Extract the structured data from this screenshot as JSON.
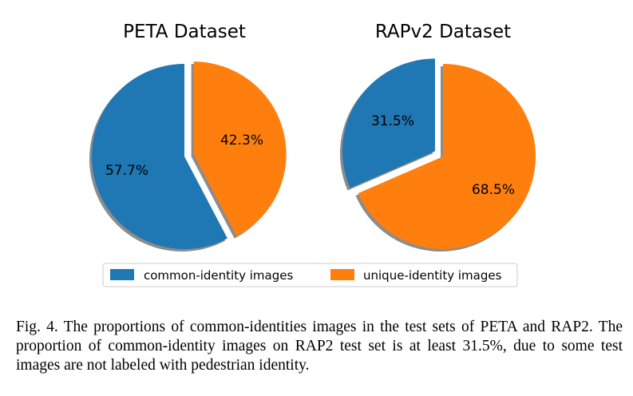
{
  "chart_data": [
    {
      "type": "pie",
      "title": "PETA Dataset",
      "slices": [
        {
          "label": "common-identity images",
          "value": 57.7,
          "display": "57.7%",
          "color": "#1f77b4"
        },
        {
          "label": "unique-identity images",
          "value": 42.3,
          "display": "42.3%",
          "color": "#ff7f0e"
        }
      ],
      "explode": "unique-identity images",
      "shadow": true
    },
    {
      "type": "pie",
      "title": "RAPv2 Dataset",
      "slices": [
        {
          "label": "common-identity images",
          "value": 31.5,
          "display": "31.5%",
          "color": "#1f77b4"
        },
        {
          "label": "unique-identity images",
          "value": 68.5,
          "display": "68.5%",
          "color": "#ff7f0e"
        }
      ],
      "explode": "common-identity images",
      "shadow": true
    }
  ],
  "legend": {
    "placement": "bottom-center",
    "entries": [
      {
        "label": "common-identity images",
        "color": "#1f77b4"
      },
      {
        "label": "unique-identity images",
        "color": "#ff7f0e"
      }
    ]
  },
  "caption": "Fig. 4.  The proportions of common-identities images in the test sets of PETA and RAP2. The proportion of common-identity images on RAP2 test set is at least 31.5%, due to some test images are not labeled with pedestrian identity."
}
